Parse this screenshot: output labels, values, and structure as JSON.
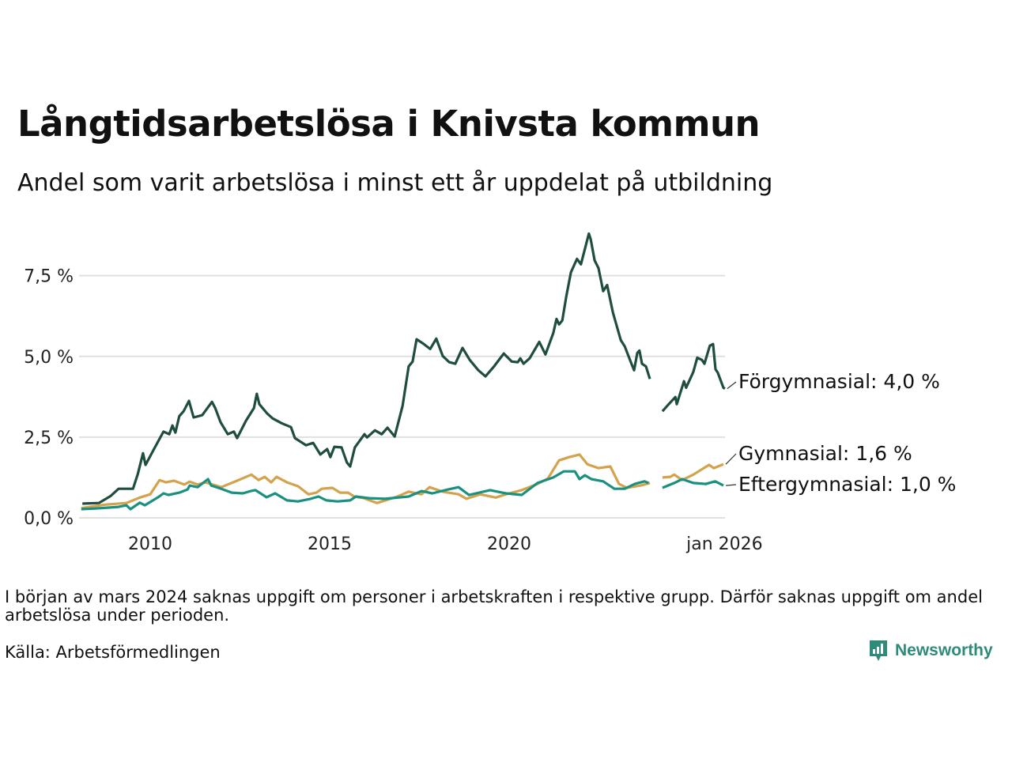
{
  "header": {
    "title": "Långtidsarbetslösa i Knivsta kommun",
    "subtitle": "Andel som varit arbetslösa i minst ett år uppdelat på utbildning"
  },
  "footer": {
    "note": "I början av mars 2024 saknas uppgift om personer i arbetskraften i respektive grupp. Därför saknas uppgift om andel arbetslösa under perioden.",
    "source": "Källa: Arbetsförmedlingen",
    "logo_text": "Newsworthy"
  },
  "chart_data": {
    "type": "line",
    "title": "Långtidsarbetslösa i Knivsta kommun",
    "xlabel": "",
    "ylabel": "",
    "xlim": [
      2008.0,
      2026.0
    ],
    "ylim": [
      0,
      9
    ],
    "y_ticks": [
      0,
      2.5,
      5,
      7.5
    ],
    "y_tick_labels": [
      "0,0 %",
      "2,5 %",
      "5,0 %",
      "7,5 %"
    ],
    "x_ticks": [
      2010,
      2015,
      2020,
      2026
    ],
    "x_tick_labels": [
      "2010",
      "2015",
      "2020",
      "jan 2026"
    ],
    "grid": true,
    "legend": "end-labels-right",
    "series": [
      {
        "name": "Förgymnasial",
        "end_label": "Förgymnasial: 4,0 %",
        "color": "#1f4d3f",
        "points": [
          [
            2008.11,
            0.44
          ],
          [
            2008.57,
            0.46
          ],
          [
            2008.9,
            0.68
          ],
          [
            2009.12,
            0.9
          ],
          [
            2009.34,
            0.9
          ],
          [
            2009.52,
            0.9
          ],
          [
            2009.65,
            1.34
          ],
          [
            2009.8,
            2.0
          ],
          [
            2009.87,
            1.64
          ],
          [
            2010.13,
            2.18
          ],
          [
            2010.37,
            2.67
          ],
          [
            2010.53,
            2.59
          ],
          [
            2010.62,
            2.86
          ],
          [
            2010.7,
            2.64
          ],
          [
            2010.81,
            3.15
          ],
          [
            2010.93,
            3.3
          ],
          [
            2011.08,
            3.62
          ],
          [
            2011.21,
            3.11
          ],
          [
            2011.45,
            3.18
          ],
          [
            2011.72,
            3.59
          ],
          [
            2011.81,
            3.4
          ],
          [
            2011.96,
            2.96
          ],
          [
            2012.16,
            2.59
          ],
          [
            2012.33,
            2.67
          ],
          [
            2012.42,
            2.47
          ],
          [
            2012.67,
            3.01
          ],
          [
            2012.89,
            3.4
          ],
          [
            2012.97,
            3.84
          ],
          [
            2013.04,
            3.52
          ],
          [
            2013.26,
            3.23
          ],
          [
            2013.41,
            3.08
          ],
          [
            2013.66,
            2.93
          ],
          [
            2013.92,
            2.81
          ],
          [
            2014.03,
            2.47
          ],
          [
            2014.34,
            2.25
          ],
          [
            2014.54,
            2.32
          ],
          [
            2014.74,
            1.96
          ],
          [
            2014.93,
            2.13
          ],
          [
            2015.02,
            1.88
          ],
          [
            2015.13,
            2.2
          ],
          [
            2015.33,
            2.18
          ],
          [
            2015.48,
            1.71
          ],
          [
            2015.57,
            1.59
          ],
          [
            2015.7,
            2.18
          ],
          [
            2015.97,
            2.59
          ],
          [
            2016.04,
            2.49
          ],
          [
            2016.26,
            2.71
          ],
          [
            2016.45,
            2.59
          ],
          [
            2016.61,
            2.79
          ],
          [
            2016.81,
            2.52
          ],
          [
            2017.03,
            3.47
          ],
          [
            2017.2,
            4.69
          ],
          [
            2017.31,
            4.84
          ],
          [
            2017.42,
            5.53
          ],
          [
            2017.6,
            5.4
          ],
          [
            2017.8,
            5.23
          ],
          [
            2017.97,
            5.55
          ],
          [
            2018.15,
            5.01
          ],
          [
            2018.33,
            4.82
          ],
          [
            2018.5,
            4.77
          ],
          [
            2018.7,
            5.26
          ],
          [
            2018.9,
            4.89
          ],
          [
            2019.14,
            4.57
          ],
          [
            2019.34,
            4.38
          ],
          [
            2019.58,
            4.69
          ],
          [
            2019.85,
            5.09
          ],
          [
            2020.07,
            4.84
          ],
          [
            2020.24,
            4.82
          ],
          [
            2020.31,
            4.94
          ],
          [
            2020.4,
            4.77
          ],
          [
            2020.57,
            4.94
          ],
          [
            2020.84,
            5.45
          ],
          [
            2021.01,
            5.06
          ],
          [
            2021.23,
            5.72
          ],
          [
            2021.32,
            6.16
          ],
          [
            2021.39,
            5.99
          ],
          [
            2021.48,
            6.11
          ],
          [
            2021.59,
            6.85
          ],
          [
            2021.72,
            7.6
          ],
          [
            2021.89,
            8.02
          ],
          [
            2022.0,
            7.85
          ],
          [
            2022.05,
            8.07
          ],
          [
            2022.18,
            8.63
          ],
          [
            2022.22,
            8.8
          ],
          [
            2022.27,
            8.63
          ],
          [
            2022.38,
            7.97
          ],
          [
            2022.49,
            7.73
          ],
          [
            2022.62,
            7.02
          ],
          [
            2022.73,
            7.21
          ],
          [
            2022.89,
            6.36
          ],
          [
            2023.11,
            5.5
          ],
          [
            2023.22,
            5.31
          ],
          [
            2023.39,
            4.82
          ],
          [
            2023.48,
            4.57
          ],
          [
            2023.57,
            5.11
          ],
          [
            2023.63,
            5.18
          ],
          [
            2023.7,
            4.77
          ],
          [
            2023.81,
            4.69
          ],
          [
            2023.92,
            4.3
          ],
          null,
          [
            2024.27,
            3.3
          ],
          [
            2024.43,
            3.5
          ],
          [
            2024.63,
            3.74
          ],
          [
            2024.67,
            3.52
          ],
          [
            2024.87,
            4.23
          ],
          [
            2024.93,
            4.03
          ],
          [
            2025.13,
            4.52
          ],
          [
            2025.24,
            4.96
          ],
          [
            2025.37,
            4.89
          ],
          [
            2025.44,
            4.77
          ],
          [
            2025.59,
            5.33
          ],
          [
            2025.68,
            5.38
          ],
          [
            2025.75,
            4.6
          ],
          [
            2025.81,
            4.5
          ],
          [
            2025.97,
            4.03
          ],
          [
            2026.01,
            4.0
          ]
        ]
      },
      {
        "name": "Gymnasial",
        "end_label": "Gymnasial: 1,6 %",
        "color": "#d4a24c",
        "points": [
          [
            2008.08,
            0.3
          ],
          [
            2008.74,
            0.41
          ],
          [
            2009.34,
            0.46
          ],
          [
            2009.71,
            0.63
          ],
          [
            2010.0,
            0.73
          ],
          [
            2010.26,
            1.17
          ],
          [
            2010.44,
            1.1
          ],
          [
            2010.66,
            1.15
          ],
          [
            2010.95,
            1.03
          ],
          [
            2011.1,
            1.12
          ],
          [
            2011.32,
            1.03
          ],
          [
            2011.54,
            1.1
          ],
          [
            2011.98,
            0.95
          ],
          [
            2012.42,
            1.15
          ],
          [
            2012.82,
            1.34
          ],
          [
            2013.02,
            1.17
          ],
          [
            2013.19,
            1.27
          ],
          [
            2013.37,
            1.1
          ],
          [
            2013.52,
            1.27
          ],
          [
            2013.81,
            1.1
          ],
          [
            2014.12,
            0.98
          ],
          [
            2014.41,
            0.73
          ],
          [
            2014.63,
            0.78
          ],
          [
            2014.78,
            0.9
          ],
          [
            2015.07,
            0.93
          ],
          [
            2015.29,
            0.78
          ],
          [
            2015.51,
            0.78
          ],
          [
            2015.68,
            0.66
          ],
          [
            2015.95,
            0.61
          ],
          [
            2016.32,
            0.46
          ],
          [
            2016.61,
            0.56
          ],
          [
            2016.89,
            0.66
          ],
          [
            2017.2,
            0.81
          ],
          [
            2017.56,
            0.73
          ],
          [
            2017.78,
            0.95
          ],
          [
            2018.15,
            0.81
          ],
          [
            2018.59,
            0.73
          ],
          [
            2018.81,
            0.59
          ],
          [
            2019.19,
            0.73
          ],
          [
            2019.63,
            0.63
          ],
          [
            2019.91,
            0.73
          ],
          [
            2020.35,
            0.86
          ],
          [
            2020.79,
            1.05
          ],
          [
            2021.08,
            1.22
          ],
          [
            2021.39,
            1.78
          ],
          [
            2021.67,
            1.88
          ],
          [
            2021.96,
            1.96
          ],
          [
            2022.18,
            1.66
          ],
          [
            2022.49,
            1.54
          ],
          [
            2022.82,
            1.59
          ],
          [
            2023.06,
            1.05
          ],
          [
            2023.28,
            0.93
          ],
          [
            2023.66,
            1.0
          ],
          [
            2023.92,
            1.08
          ],
          null,
          [
            2024.27,
            1.25
          ],
          [
            2024.49,
            1.27
          ],
          [
            2024.6,
            1.34
          ],
          [
            2024.82,
            1.17
          ],
          [
            2025.13,
            1.34
          ],
          [
            2025.42,
            1.54
          ],
          [
            2025.57,
            1.64
          ],
          [
            2025.7,
            1.54
          ],
          [
            2025.97,
            1.66
          ]
        ]
      },
      {
        "name": "Eftergymnasial",
        "end_label": "Eftergymnasial: 1,0 %",
        "color": "#1a9080",
        "points": [
          [
            2008.08,
            0.27
          ],
          [
            2008.46,
            0.29
          ],
          [
            2009.12,
            0.34
          ],
          [
            2009.34,
            0.39
          ],
          [
            2009.45,
            0.27
          ],
          [
            2009.71,
            0.47
          ],
          [
            2009.85,
            0.39
          ],
          [
            2010.22,
            0.64
          ],
          [
            2010.37,
            0.76
          ],
          [
            2010.51,
            0.71
          ],
          [
            2010.81,
            0.78
          ],
          [
            2011.04,
            0.88
          ],
          [
            2011.1,
            1.0
          ],
          [
            2011.32,
            0.95
          ],
          [
            2011.61,
            1.2
          ],
          [
            2011.7,
            1.0
          ],
          [
            2011.98,
            0.9
          ],
          [
            2012.27,
            0.78
          ],
          [
            2012.58,
            0.76
          ],
          [
            2012.8,
            0.83
          ],
          [
            2012.93,
            0.86
          ],
          [
            2013.24,
            0.64
          ],
          [
            2013.48,
            0.76
          ],
          [
            2013.81,
            0.54
          ],
          [
            2014.12,
            0.51
          ],
          [
            2014.47,
            0.59
          ],
          [
            2014.69,
            0.66
          ],
          [
            2014.91,
            0.54
          ],
          [
            2015.22,
            0.51
          ],
          [
            2015.57,
            0.54
          ],
          [
            2015.73,
            0.66
          ],
          [
            2016.1,
            0.61
          ],
          [
            2016.54,
            0.59
          ],
          [
            2017.2,
            0.66
          ],
          [
            2017.56,
            0.83
          ],
          [
            2017.86,
            0.76
          ],
          [
            2018.3,
            0.88
          ],
          [
            2018.59,
            0.95
          ],
          [
            2018.88,
            0.71
          ],
          [
            2019.47,
            0.86
          ],
          [
            2019.91,
            0.76
          ],
          [
            2020.35,
            0.71
          ],
          [
            2020.79,
            1.08
          ],
          [
            2021.23,
            1.25
          ],
          [
            2021.52,
            1.44
          ],
          [
            2021.83,
            1.44
          ],
          [
            2021.96,
            1.2
          ],
          [
            2022.11,
            1.32
          ],
          [
            2022.29,
            1.2
          ],
          [
            2022.62,
            1.13
          ],
          [
            2022.93,
            0.9
          ],
          [
            2023.22,
            0.9
          ],
          [
            2023.5,
            1.05
          ],
          [
            2023.77,
            1.13
          ],
          [
            2023.88,
            1.08
          ],
          null,
          [
            2024.27,
            0.93
          ],
          [
            2024.6,
            1.08
          ],
          [
            2024.82,
            1.2
          ],
          [
            2025.13,
            1.08
          ],
          [
            2025.48,
            1.05
          ],
          [
            2025.74,
            1.13
          ],
          [
            2025.97,
            1.0
          ]
        ]
      }
    ]
  }
}
